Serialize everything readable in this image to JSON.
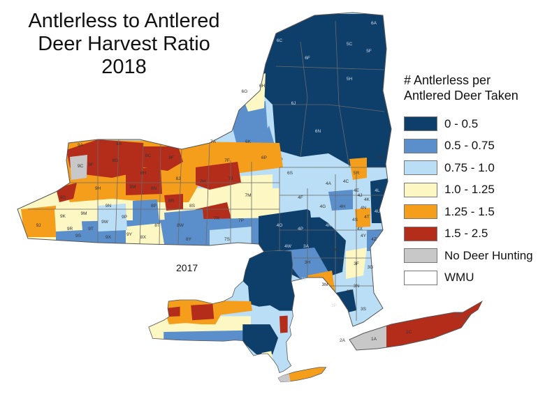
{
  "title": {
    "line1": "Antlerless to Antlered",
    "line2": "Deer Harvest Ratio",
    "line3": "2018"
  },
  "legend": {
    "title_line1": "# Antlerless per",
    "title_line2": "Antlered Deer Taken",
    "items": [
      {
        "label": "0 - 0.5",
        "color": "#0e3f6b"
      },
      {
        "label": "0.5 - 0.75",
        "color": "#5b8fcb"
      },
      {
        "label": "0.75 - 1.0",
        "color": "#b9def5"
      },
      {
        "label": "1.0 - 1.25",
        "color": "#fdf7c3"
      },
      {
        "label": "1.25 - 1.5",
        "color": "#f59e1b"
      },
      {
        "label": "1.5 - 2.5",
        "color": "#b42d1a"
      },
      {
        "label": "No Deer Hunting",
        "color": "#c8c8c8"
      },
      {
        "label": "WMU",
        "color": "#ffffff"
      }
    ]
  },
  "inset": {
    "label": "2017"
  },
  "wmu_labels": [
    {
      "code": "6A",
      "cls": 0
    },
    {
      "code": "6C",
      "cls": 0
    },
    {
      "code": "6F",
      "cls": 0
    },
    {
      "code": "5C",
      "cls": 0
    },
    {
      "code": "5F",
      "cls": 0
    },
    {
      "code": "5H",
      "cls": 0
    },
    {
      "code": "6J",
      "cls": 0
    },
    {
      "code": "6N",
      "cls": 0
    },
    {
      "code": "6K",
      "cls": 1
    },
    {
      "code": "6G",
      "cls": 3
    },
    {
      "code": "6H",
      "cls": 2
    },
    {
      "code": "6P",
      "cls": 4
    },
    {
      "code": "7A",
      "cls": 2
    },
    {
      "code": "7F",
      "cls": 4
    },
    {
      "code": "7J",
      "cls": 5
    },
    {
      "code": "7H",
      "cls": 4
    },
    {
      "code": "7M",
      "cls": 3
    },
    {
      "code": "7P",
      "cls": 2
    },
    {
      "code": "7R",
      "cls": 5
    },
    {
      "code": "7S",
      "cls": 2
    },
    {
      "code": "8A",
      "cls": 4
    },
    {
      "code": "9A",
      "cls": 5
    },
    {
      "code": "8G",
      "cls": 5
    },
    {
      "code": "8F",
      "cls": 5
    },
    {
      "code": "8C",
      "cls": 4
    },
    {
      "code": "8H",
      "cls": 5
    },
    {
      "code": "8J",
      "cls": 4
    },
    {
      "code": "8M",
      "cls": 4
    },
    {
      "code": "8N",
      "cls": 5
    },
    {
      "code": "8R",
      "cls": 5
    },
    {
      "code": "8S",
      "cls": 3
    },
    {
      "code": "8P",
      "cls": 1
    },
    {
      "code": "8T",
      "cls": 3
    },
    {
      "code": "8W",
      "cls": 1
    },
    {
      "code": "8X",
      "cls": 3
    },
    {
      "code": "8Y",
      "cls": 3
    },
    {
      "code": "9C",
      "cls": 6
    },
    {
      "code": "9F",
      "cls": 4
    },
    {
      "code": "9H",
      "cls": 4
    },
    {
      "code": "9G",
      "cls": 5
    },
    {
      "code": "9J",
      "cls": 4
    },
    {
      "code": "9K",
      "cls": 3
    },
    {
      "code": "9M",
      "cls": 3
    },
    {
      "code": "9N",
      "cls": 4
    },
    {
      "code": "9P",
      "cls": 2
    },
    {
      "code": "9W",
      "cls": 2
    },
    {
      "code": "9R",
      "cls": 1
    },
    {
      "code": "9S",
      "cls": 1
    },
    {
      "code": "9T",
      "cls": 1
    },
    {
      "code": "9X",
      "cls": 1
    },
    {
      "code": "9Y",
      "cls": 3
    },
    {
      "code": "6S",
      "cls": 2
    },
    {
      "code": "5S",
      "cls": 2
    },
    {
      "code": "5R",
      "cls": 4
    },
    {
      "code": "4A",
      "cls": 2
    },
    {
      "code": "4C",
      "cls": 2
    },
    {
      "code": "4E",
      "cls": 2
    },
    {
      "code": "4F",
      "cls": 2
    },
    {
      "code": "4G",
      "cls": 2
    },
    {
      "code": "4H",
      "cls": 1
    },
    {
      "code": "4J",
      "cls": 2
    },
    {
      "code": "4K",
      "cls": 2
    },
    {
      "code": "4L",
      "cls": 0
    },
    {
      "code": "4N",
      "cls": 1
    },
    {
      "code": "4O",
      "cls": 0
    },
    {
      "code": "4P",
      "cls": 0
    },
    {
      "code": "4R",
      "cls": 0
    },
    {
      "code": "4S",
      "cls": 2
    },
    {
      "code": "4T",
      "cls": 4
    },
    {
      "code": "4U",
      "cls": 0
    },
    {
      "code": "4W",
      "cls": 0
    },
    {
      "code": "4X",
      "cls": 1
    },
    {
      "code": "4Y",
      "cls": 2
    },
    {
      "code": "4Z",
      "cls": 2
    },
    {
      "code": "3A",
      "cls": 0
    },
    {
      "code": "3C",
      "cls": 1
    },
    {
      "code": "3F",
      "cls": 3
    },
    {
      "code": "3G",
      "cls": 2
    },
    {
      "code": "3H",
      "cls": 1
    },
    {
      "code": "3J",
      "cls": 2
    },
    {
      "code": "3K",
      "cls": 0
    },
    {
      "code": "3M",
      "cls": 4
    },
    {
      "code": "3N",
      "cls": 2
    },
    {
      "code": "3P",
      "cls": 0
    },
    {
      "code": "3R",
      "cls": 1
    },
    {
      "code": "3S",
      "cls": 2
    },
    {
      "code": "2A",
      "cls": 6
    },
    {
      "code": "1A",
      "cls": 6
    },
    {
      "code": "1C",
      "cls": 5
    }
  ]
}
